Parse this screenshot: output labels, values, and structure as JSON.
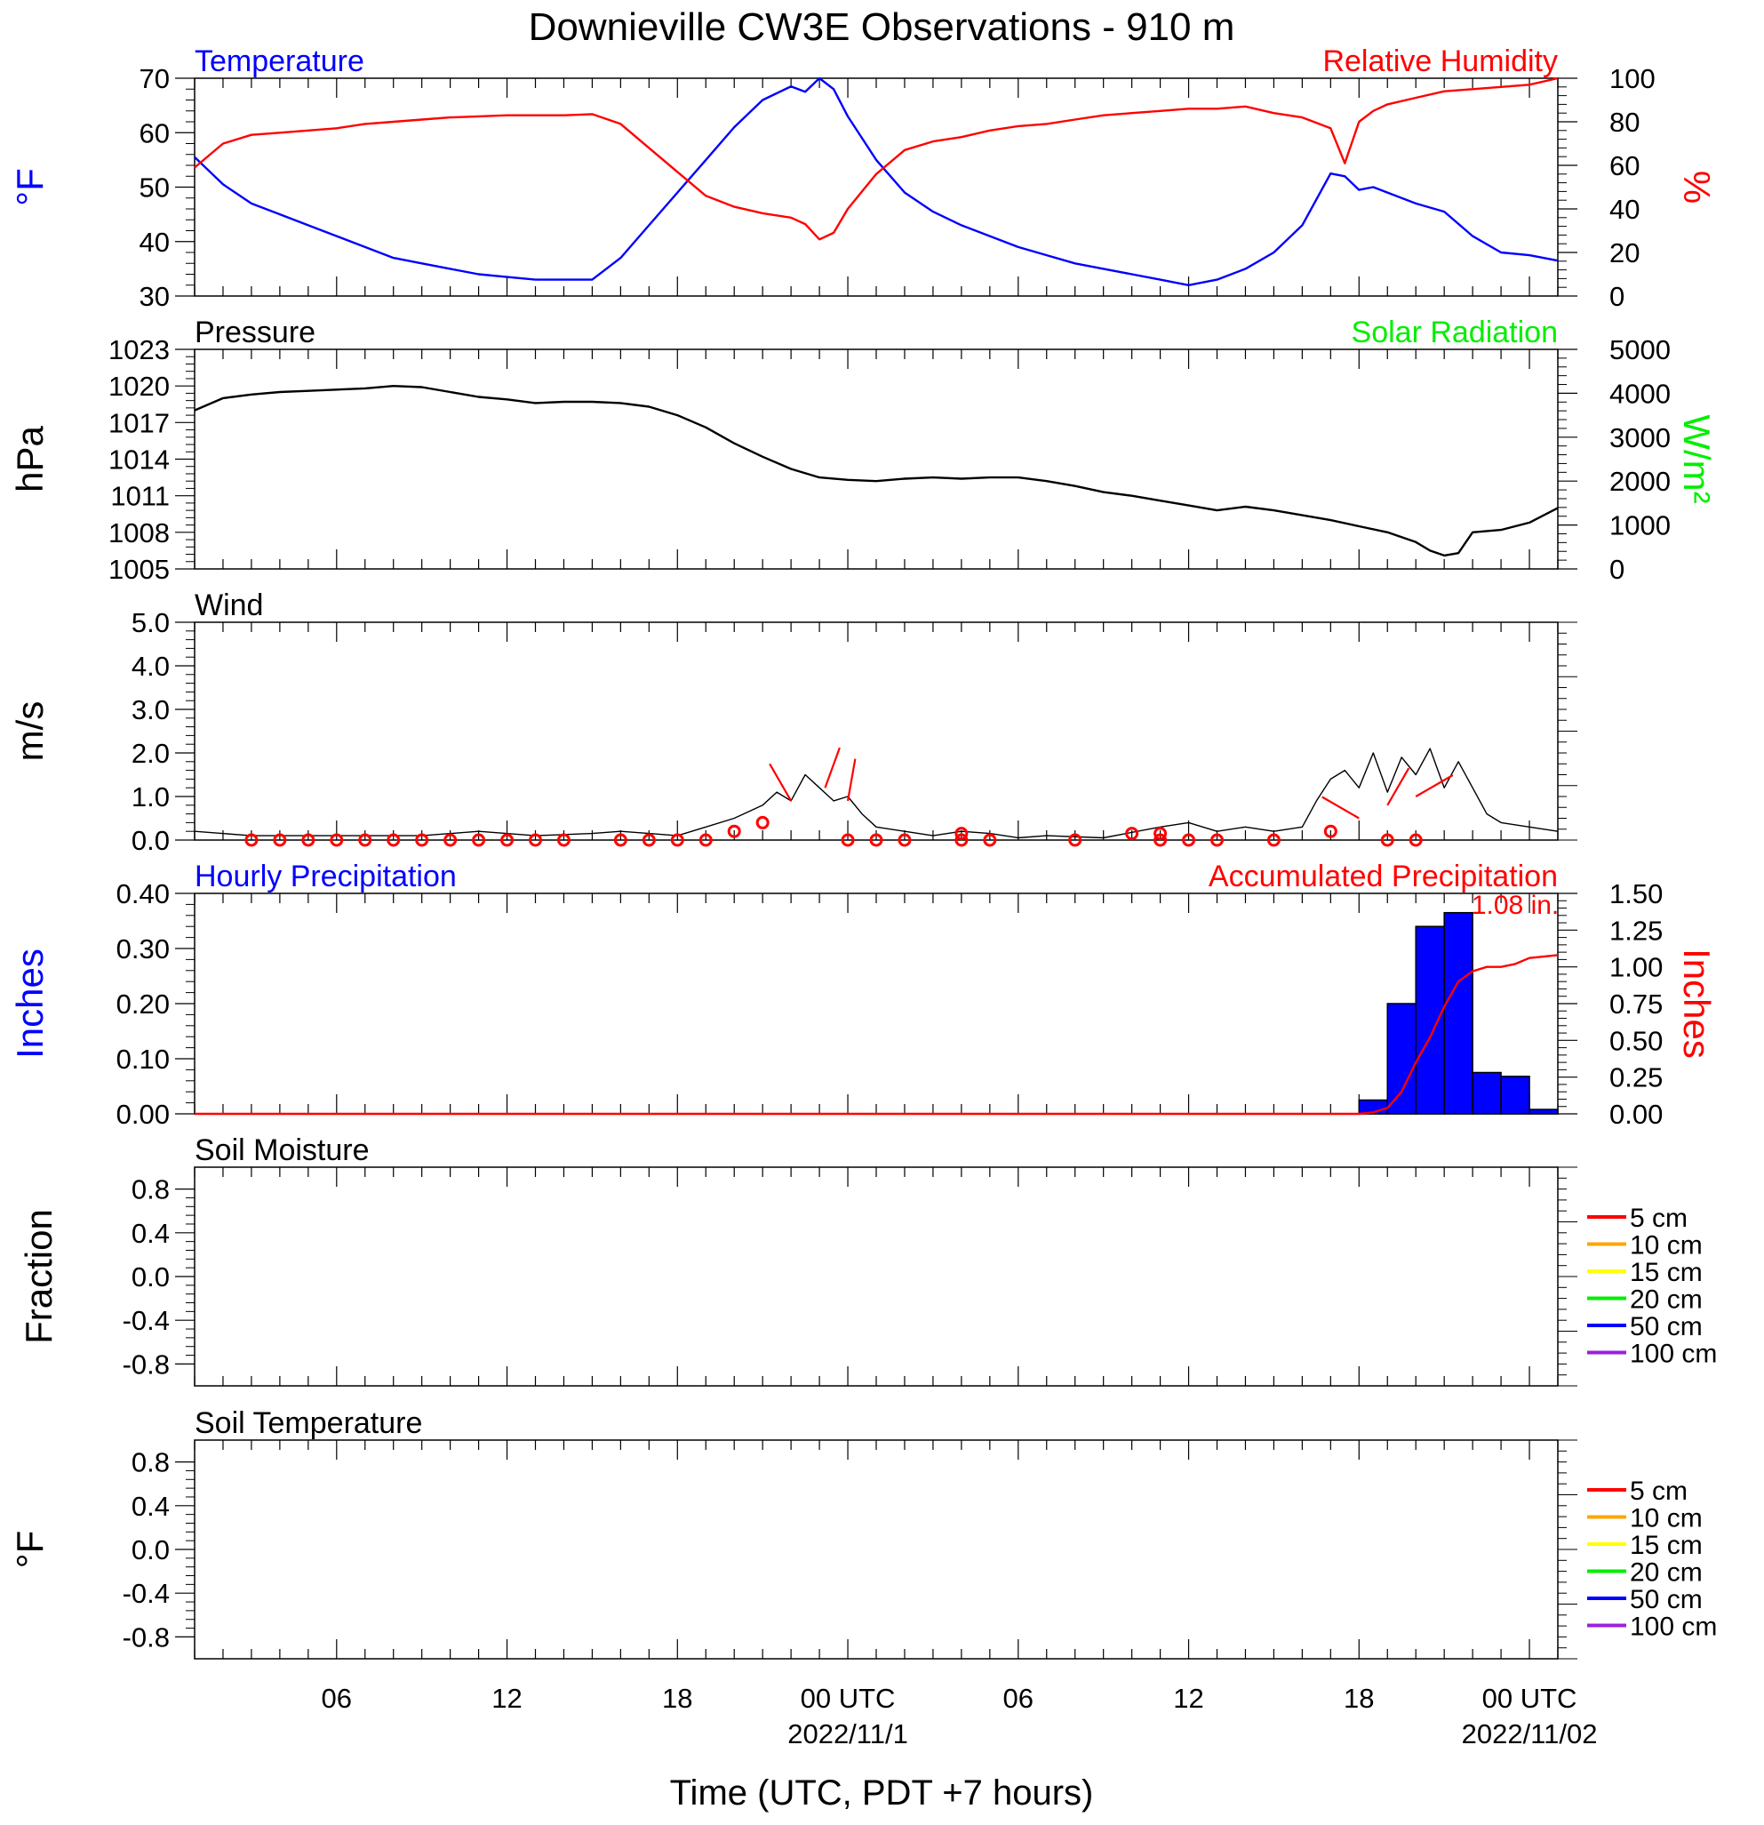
{
  "title": "Downieville CW3E Observations - 910 m",
  "colors": {
    "blue": "#0000ff",
    "red": "#ff0000",
    "green": "#00ee00",
    "black": "#000000",
    "orange": "#ffa500",
    "yellow": "#ffff00",
    "purple": "#9a1fe0"
  },
  "time_axis": {
    "label": "Time (UTC, PDT +7 hours)",
    "range_hours": [
      0,
      48
    ],
    "ticks": [
      {
        "hour": 5,
        "label": "06",
        "sublabel": ""
      },
      {
        "hour": 11,
        "label": "12",
        "sublabel": ""
      },
      {
        "hour": 17,
        "label": "18",
        "sublabel": ""
      },
      {
        "hour": 23,
        "label": "00 UTC",
        "sublabel": "2022/11/1"
      },
      {
        "hour": 29,
        "label": "06",
        "sublabel": ""
      },
      {
        "hour": 35,
        "label": "12",
        "sublabel": ""
      },
      {
        "hour": 41,
        "label": "18",
        "sublabel": ""
      },
      {
        "hour": 47,
        "label": "00 UTC",
        "sublabel": "2022/11/02"
      }
    ]
  },
  "chart_data": [
    {
      "type": "line",
      "id": "temp_rh",
      "title_left": "Temperature",
      "title_right": "Relative Humidity",
      "ylabel_left": "°F",
      "ylabel_right": "%",
      "ylim_left": [
        30,
        70
      ],
      "yticks_left": [
        30,
        40,
        50,
        60,
        70
      ],
      "ylim_right": [
        0,
        100
      ],
      "yticks_right": [
        0,
        20,
        40,
        60,
        80,
        100
      ],
      "series": [
        {
          "name": "Temperature",
          "axis": "left",
          "color": "#0000ff",
          "x": [
            0,
            1,
            2,
            3,
            4,
            5,
            6,
            7,
            8,
            9,
            10,
            11,
            12,
            13,
            14,
            15,
            16,
            17,
            18,
            19,
            20,
            21,
            21.5,
            22,
            22.5,
            23,
            24,
            25,
            26,
            27,
            28,
            29,
            30,
            31,
            32,
            33,
            34,
            35,
            36,
            37,
            38,
            39,
            40,
            40.5,
            41,
            41.5,
            42,
            43,
            44,
            45,
            46,
            47,
            48
          ],
          "y": [
            55.5,
            50.5,
            47,
            45,
            43,
            41,
            39,
            37,
            36,
            35,
            34,
            33.5,
            33,
            33,
            33,
            37,
            43,
            49,
            55,
            61,
            66,
            68.5,
            67.5,
            70,
            68,
            63,
            55,
            49,
            45.5,
            43,
            41,
            39,
            37.5,
            36,
            35,
            34,
            33,
            32,
            33,
            35,
            38,
            43,
            52.5,
            52,
            49.5,
            50,
            49,
            47,
            45.5,
            41,
            38,
            37.5,
            36.5
          ]
        },
        {
          "name": "Relative Humidity",
          "axis": "right",
          "color": "#ff0000",
          "x": [
            0,
            1,
            2,
            3,
            4,
            5,
            6,
            7,
            8,
            9,
            10,
            11,
            12,
            13,
            14,
            15,
            16,
            17,
            18,
            19,
            20,
            21,
            21.5,
            22,
            22.5,
            23,
            24,
            25,
            26,
            27,
            28,
            29,
            30,
            31,
            32,
            33,
            34,
            35,
            36,
            37,
            38,
            39,
            40,
            40.5,
            41,
            41.5,
            42,
            43,
            44,
            45,
            46,
            47,
            48
          ],
          "y": [
            59,
            70,
            74,
            75,
            76,
            77,
            79,
            80,
            81,
            82,
            82.5,
            83,
            83,
            83,
            83.5,
            79,
            68,
            57,
            46,
            41,
            38,
            36,
            33,
            26,
            29,
            40,
            56,
            67,
            71,
            73,
            76,
            78,
            79,
            81,
            83,
            84,
            85,
            86,
            86,
            87,
            84,
            82,
            77,
            61,
            80,
            85,
            88,
            91,
            94,
            95,
            96,
            97,
            100
          ]
        }
      ]
    },
    {
      "type": "line",
      "id": "pressure",
      "title_left": "Pressure",
      "title_right": "Solar Radiation",
      "ylabel_left": "hPa",
      "ylabel_right": "W/m²",
      "ylim_left": [
        1005,
        1023
      ],
      "yticks_left": [
        1005,
        1008,
        1011,
        1014,
        1017,
        1020,
        1023
      ],
      "ylim_right": [
        0,
        5000
      ],
      "yticks_right": [
        0,
        1000,
        2000,
        3000,
        4000,
        5000
      ],
      "series": [
        {
          "name": "Pressure",
          "axis": "left",
          "color": "#000000",
          "x": [
            0,
            1,
            2,
            3,
            4,
            5,
            6,
            7,
            8,
            9,
            10,
            11,
            12,
            13,
            14,
            15,
            16,
            17,
            18,
            19,
            20,
            21,
            22,
            23,
            24,
            25,
            26,
            27,
            28,
            29,
            30,
            31,
            32,
            33,
            34,
            35,
            36,
            37,
            38,
            39,
            40,
            41,
            42,
            43,
            43.5,
            44,
            44.5,
            45,
            46,
            47,
            48
          ],
          "y": [
            1018,
            1019,
            1019.3,
            1019.5,
            1019.6,
            1019.7,
            1019.8,
            1020,
            1019.9,
            1019.5,
            1019.1,
            1018.9,
            1018.6,
            1018.7,
            1018.7,
            1018.6,
            1018.3,
            1017.6,
            1016.6,
            1015.3,
            1014.2,
            1013.2,
            1012.5,
            1012.3,
            1012.2,
            1012.4,
            1012.5,
            1012.4,
            1012.5,
            1012.5,
            1012.2,
            1011.8,
            1011.3,
            1011,
            1010.6,
            1010.2,
            1009.8,
            1010.1,
            1009.8,
            1009.4,
            1009,
            1008.5,
            1008,
            1007.2,
            1006.5,
            1006.1,
            1006.3,
            1008,
            1008.2,
            1008.8,
            1010
          ]
        }
      ]
    },
    {
      "type": "line",
      "id": "wind",
      "title_left": "Wind",
      "ylabel_left": "m/s",
      "ylim_left": [
        0,
        5
      ],
      "yticks_left": [
        0,
        1,
        2,
        3,
        4,
        5
      ],
      "yticklabels_left": [
        "0.0",
        "1.0",
        "2.0",
        "3.0",
        "4.0",
        "5.0"
      ],
      "series": [
        {
          "name": "Wind Speed",
          "color": "#000000",
          "x": [
            0,
            2,
            4,
            6,
            8,
            10,
            12,
            14,
            15,
            16,
            17,
            18,
            19,
            20,
            20.5,
            21,
            21.5,
            22,
            22.5,
            23,
            23.5,
            24,
            25,
            26,
            27,
            28,
            29,
            30,
            32,
            34,
            35,
            36,
            37,
            38,
            39,
            39.5,
            40,
            40.5,
            41,
            41.5,
            42,
            42.5,
            43,
            43.5,
            44,
            44.5,
            45,
            45.5,
            46,
            47,
            48
          ],
          "y": [
            0.2,
            0.1,
            0.1,
            0.1,
            0.1,
            0.2,
            0.1,
            0.15,
            0.2,
            0.15,
            0.1,
            0.3,
            0.5,
            0.8,
            1.1,
            0.9,
            1.5,
            1.2,
            0.9,
            1.0,
            0.6,
            0.3,
            0.2,
            0.1,
            0.2,
            0.15,
            0.05,
            0.1,
            0.05,
            0.3,
            0.4,
            0.2,
            0.3,
            0.2,
            0.3,
            0.9,
            1.4,
            1.6,
            1.2,
            2.0,
            1.1,
            1.9,
            1.5,
            2.1,
            1.2,
            1.8,
            1.2,
            0.6,
            0.4,
            0.3,
            0.2
          ]
        }
      ],
      "barbs": {
        "color": "#ff0000",
        "calm_hours": [
          2,
          3,
          4,
          5,
          6,
          7,
          8,
          9,
          10,
          11,
          12,
          13,
          15,
          16,
          17,
          18,
          23,
          24,
          25,
          27,
          28,
          31,
          33,
          34,
          35,
          36,
          38,
          42,
          43
        ],
        "calm_speeds": [
          0,
          0,
          0,
          0,
          0,
          0,
          0,
          0,
          0,
          0,
          0,
          0,
          0,
          0,
          0,
          0,
          0,
          0,
          0,
          0,
          0,
          0,
          0.15,
          0,
          0,
          0,
          0,
          0,
          0
        ],
        "low_circles": [
          {
            "hour": 19,
            "speed": 0.2
          },
          {
            "hour": 20,
            "speed": 0.4
          },
          {
            "hour": 27,
            "speed": 0.15
          },
          {
            "hour": 34,
            "speed": 0.15
          },
          {
            "hour": 40,
            "speed": 0.2
          }
        ],
        "segments": [
          {
            "hour": 21,
            "speed": 0.9,
            "angle": -30
          },
          {
            "hour": 22.2,
            "speed": 1.2,
            "angle": 20
          },
          {
            "hour": 23,
            "speed": 0.9,
            "angle": 10
          },
          {
            "hour": 41,
            "speed": 0.5,
            "angle": -60
          },
          {
            "hour": 42,
            "speed": 0.8,
            "angle": 30
          },
          {
            "hour": 43,
            "speed": 1.0,
            "angle": 60
          }
        ]
      }
    },
    {
      "type": "bar",
      "id": "precip",
      "title_left": "Hourly Precipitation",
      "title_right": "Accumulated Precipitation",
      "ylabel_left": "Inches",
      "ylabel_right": "Inches",
      "ylim_left": [
        0,
        0.4
      ],
      "yticks_left": [
        0,
        0.1,
        0.2,
        0.3,
        0.4
      ],
      "yticklabels_left": [
        "0.00",
        "0.10",
        "0.20",
        "0.30",
        "0.40"
      ],
      "ylim_right": [
        0,
        1.5
      ],
      "yticks_right": [
        0,
        0.25,
        0.5,
        0.75,
        1,
        1.25,
        1.5
      ],
      "yticklabels_right": [
        "0.00",
        "0.25",
        "0.50",
        "0.75",
        "1.00",
        "1.25",
        "1.50"
      ],
      "bars": {
        "name": "Hourly Precipitation",
        "color": "#0000ff",
        "x": [
          41,
          42,
          43,
          44,
          45,
          46,
          47
        ],
        "values": [
          0.025,
          0.2,
          0.34,
          0.365,
          0.075,
          0.068,
          0.008
        ]
      },
      "series": [
        {
          "name": "Accumulated Precipitation",
          "axis": "right",
          "color": "#ff0000",
          "x": [
            0,
            41,
            41.5,
            42,
            42.5,
            43,
            43.5,
            44,
            44.5,
            45,
            45.5,
            46,
            46.5,
            47,
            47.5,
            48
          ],
          "y": [
            0,
            0,
            0.01,
            0.04,
            0.15,
            0.35,
            0.52,
            0.73,
            0.9,
            0.97,
            1.0,
            1.0,
            1.02,
            1.06,
            1.07,
            1.08
          ]
        }
      ],
      "annotation": {
        "text": "1.08 in.",
        "x": 46.5,
        "y": 1.36
      }
    },
    {
      "type": "line",
      "id": "soil_moisture",
      "title_left": "Soil Moisture",
      "ylabel_left": "Fraction",
      "ylim_left": [
        -1,
        1
      ],
      "yticks_left": [
        -0.8,
        -0.4,
        0,
        0.4,
        0.8
      ],
      "yticklabels_left": [
        "-0.8",
        "-0.4",
        "0.0",
        "0.4",
        "0.8"
      ],
      "legend": [
        {
          "label": "5 cm",
          "color": "#ff0000"
        },
        {
          "label": "10 cm",
          "color": "#ffa500"
        },
        {
          "label": "15 cm",
          "color": "#ffff00"
        },
        {
          "label": "20 cm",
          "color": "#00ee00"
        },
        {
          "label": "50 cm",
          "color": "#0000ff"
        },
        {
          "label": "100 cm",
          "color": "#9a1fe0"
        }
      ],
      "series": []
    },
    {
      "type": "line",
      "id": "soil_temp",
      "title_left": "Soil Temperature",
      "ylabel_left": "°F",
      "ylim_left": [
        -1,
        1
      ],
      "yticks_left": [
        -0.8,
        -0.4,
        0,
        0.4,
        0.8
      ],
      "yticklabels_left": [
        "-0.8",
        "-0.4",
        "0.0",
        "0.4",
        "0.8"
      ],
      "legend": [
        {
          "label": "5 cm",
          "color": "#ff0000"
        },
        {
          "label": "10 cm",
          "color": "#ffa500"
        },
        {
          "label": "15 cm",
          "color": "#ffff00"
        },
        {
          "label": "20 cm",
          "color": "#00ee00"
        },
        {
          "label": "50 cm",
          "color": "#0000ff"
        },
        {
          "label": "100 cm",
          "color": "#9a1fe0"
        }
      ],
      "series": []
    }
  ]
}
